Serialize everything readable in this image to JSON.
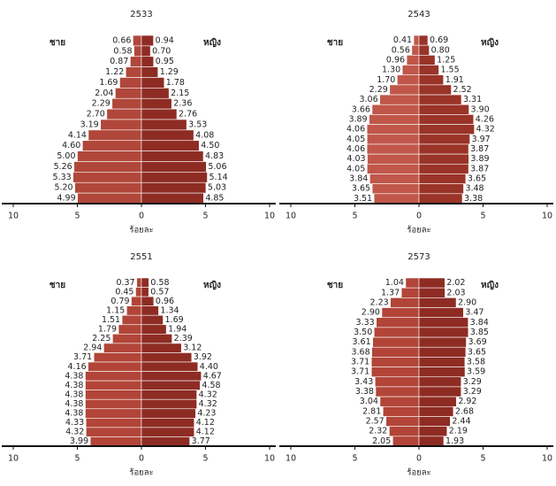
{
  "chart_data": [
    {
      "type": "pyramid",
      "title": "2533",
      "xlabel": "ร้อยละ",
      "xlim": [
        -10,
        10
      ],
      "xticks": [
        {
          "value": -10,
          "label": "10"
        },
        {
          "value": -5,
          "label": "5"
        },
        0,
        5,
        10
      ],
      "series": [
        {
          "name": "ชาย",
          "color": "#b0473a",
          "values": [
            0.66,
            0.58,
            0.87,
            1.22,
            1.69,
            2.04,
            2.29,
            2.7,
            3.19,
            4.14,
            4.6,
            5.0,
            5.26,
            5.33,
            5.2,
            4.99
          ],
          "value_labels": [
            "0.66",
            "0.58",
            "0.87",
            "1.22",
            "1.69",
            "2.04",
            "2.29",
            "2.70",
            "3.19",
            "4.14",
            "4.60",
            "5.00",
            "5.26",
            "5.33",
            "5.20",
            "4.99"
          ]
        },
        {
          "name": "หญิง",
          "color": "#8e2c24",
          "values": [
            0.94,
            0.7,
            0.95,
            1.29,
            1.78,
            2.15,
            2.36,
            2.76,
            3.53,
            4.08,
            4.5,
            4.83,
            5.06,
            5.14,
            5.03,
            4.85
          ],
          "value_labels": [
            "0.94",
            "0.70",
            "0.95",
            "1.29",
            "1.78",
            "2.15",
            "2.36",
            "2.76",
            "3.53",
            "4.08",
            "4.50",
            "4.83",
            "5.06",
            "5.14",
            "5.03",
            "4.85"
          ]
        }
      ]
    },
    {
      "type": "pyramid",
      "title": "2543",
      "xlabel": "ร้อยละ",
      "xlim": [
        -10,
        10
      ],
      "xticks": [
        {
          "value": -10,
          "label": "10"
        },
        {
          "value": -5,
          "label": "5"
        },
        0,
        5,
        10
      ],
      "series": [
        {
          "name": "ชาย",
          "color": "#c0574a",
          "values": [
            0.41,
            0.56,
            0.96,
            1.3,
            1.7,
            2.29,
            3.06,
            3.66,
            3.89,
            4.06,
            4.05,
            4.06,
            4.03,
            4.05,
            3.84,
            3.65,
            3.51
          ],
          "value_labels": [
            "0.41",
            "0.56",
            "0.96",
            "1.30",
            "1.70",
            "2.29",
            "3.06",
            "3.66",
            "3.89",
            "4.06",
            "4.05",
            "4.06",
            "4.03",
            "4.05",
            "3.84",
            "3.65",
            "3.51"
          ]
        },
        {
          "name": "หญิง",
          "color": "#9a3328",
          "values": [
            0.69,
            0.8,
            1.25,
            1.55,
            1.91,
            2.52,
            3.31,
            3.9,
            4.26,
            4.32,
            3.97,
            3.87,
            3.89,
            3.87,
            3.65,
            3.48,
            3.38
          ],
          "value_labels": [
            "0.69",
            "0.80",
            "1.25",
            "1.55",
            "1.91",
            "2.52",
            "3.31",
            "3.90",
            "4.26",
            "4.32",
            "3.97",
            "3.87",
            "3.89",
            "3.87",
            "3.65",
            "3.48",
            "3.38"
          ]
        }
      ]
    },
    {
      "type": "pyramid",
      "title": "2551",
      "xlabel": "ร้อยละ",
      "xlim": [
        -10,
        10
      ],
      "xticks": [
        {
          "value": -10,
          "label": "10"
        },
        {
          "value": -5,
          "label": "5"
        },
        0,
        5,
        10
      ],
      "series": [
        {
          "name": "ชาย",
          "color": "#b24538",
          "values": [
            0.37,
            0.45,
            0.79,
            1.15,
            1.51,
            1.79,
            2.25,
            2.94,
            3.71,
            4.16,
            4.38,
            4.38,
            4.38,
            4.38,
            4.38,
            4.33,
            4.32,
            3.99
          ],
          "value_labels": [
            "0.37",
            "0.45",
            "0.79",
            "1.15",
            "1.51",
            "1.79",
            "2.25",
            "2.94",
            "3.71",
            "4.16",
            "4.38",
            "4.38",
            "4.38",
            "4.38",
            "4.38",
            "4.33",
            "4.32",
            "3.99"
          ]
        },
        {
          "name": "หญิง",
          "color": "#8e2c24",
          "values": [
            0.58,
            0.57,
            0.96,
            1.34,
            1.69,
            1.94,
            2.39,
            3.12,
            3.92,
            4.4,
            4.67,
            4.58,
            4.32,
            4.32,
            4.23,
            4.12,
            4.12,
            3.77
          ],
          "value_labels": [
            "0.58",
            "0.57",
            "0.96",
            "1.34",
            "1.69",
            "1.94",
            "2.39",
            "3.12",
            "3.92",
            "4.40",
            "4.67",
            "4.58",
            "4.32",
            "4.32",
            "4.23",
            "4.12",
            "4.12",
            "3.77"
          ]
        }
      ]
    },
    {
      "type": "pyramid",
      "title": "2573",
      "xlabel": "ร้อยละ",
      "xlim": [
        -10,
        10
      ],
      "xticks": [
        {
          "value": -10,
          "label": "10"
        },
        {
          "value": -5,
          "label": "5"
        },
        0,
        5,
        10
      ],
      "series": [
        {
          "name": "ชาย",
          "color": "#b24538",
          "values": [
            1.04,
            1.37,
            2.23,
            2.9,
            3.33,
            3.5,
            3.61,
            3.68,
            3.71,
            3.71,
            3.43,
            3.38,
            3.04,
            2.81,
            2.57,
            2.32,
            2.05
          ],
          "value_labels": [
            "1.04",
            "1.37",
            "2.23",
            "2.90",
            "3.33",
            "3.50",
            "3.61",
            "3.68",
            "3.71",
            "3.71",
            "3.43",
            "3.38",
            "3.04",
            "2.81",
            "2.57",
            "2.32",
            "2.05"
          ]
        },
        {
          "name": "หญิง",
          "color": "#8e2c24",
          "values": [
            2.02,
            2.03,
            2.9,
            3.47,
            3.84,
            3.85,
            3.69,
            3.65,
            3.58,
            3.59,
            3.29,
            3.29,
            2.92,
            2.68,
            2.44,
            2.19,
            1.93
          ],
          "value_labels": [
            "2.02",
            "2.03",
            "2.90",
            "3.47",
            "3.84",
            "3.85",
            "3.69",
            "3.65",
            "3.58",
            "3.59",
            "3.29",
            "3.29",
            "2.92",
            "2.68",
            "2.44",
            "2.19",
            "1.93"
          ]
        }
      ]
    }
  ]
}
